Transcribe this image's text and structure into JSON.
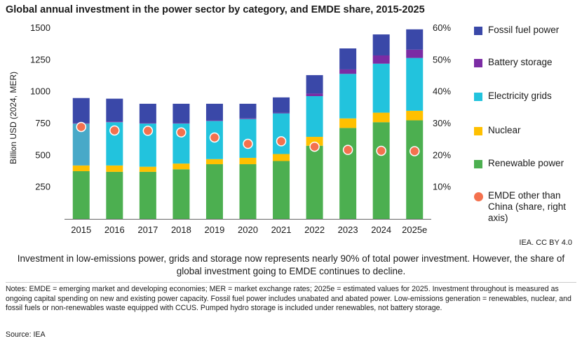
{
  "title": "Global annual investment in the power sector by category, and EMDE share, 2015-2025",
  "credit": "IEA. CC BY 4.0",
  "caption": "Investment in low-emissions power, grids and storage now represents nearly 90% of total power investment. However, the share of global investment going to EMDE continues to decline.",
  "notes": "Notes: EMDE = emerging market and developing economies; MER = market exchange rates; 2025e = estimated values for 2025. Investment throughout is measured as ongoing capital spending on new and existing power capacity. Fossil fuel power includes unabated and abated power. Low-emissions generation = renewables, nuclear, and fossil fuels or non-renewables waste equipped with CCUS. Pumped hydro storage is included under renewables, not battery storage.",
  "source": "Source: IEA",
  "chart_data": {
    "type": "bar",
    "stacked": true,
    "categories": [
      "2015",
      "2016",
      "2017",
      "2018",
      "2019",
      "2020",
      "2021",
      "2022",
      "2023",
      "2024",
      "2025e"
    ],
    "ylabel": "Billion USD (2024, MER)",
    "ylim": [
      0,
      1500
    ],
    "yticks": [
      250,
      500,
      750,
      1000,
      1250,
      1500
    ],
    "y2lim": [
      0,
      0.6
    ],
    "y2ticks": [
      "10%",
      "20%",
      "30%",
      "40%",
      "50%",
      "60%"
    ],
    "grid": false,
    "legend_position": "right",
    "series": [
      {
        "name": "Renewable power",
        "color": "#4caf50",
        "values": [
          375,
          370,
          370,
          390,
          430,
          430,
          455,
          575,
          715,
          760,
          775
        ]
      },
      {
        "name": "Nuclear",
        "color": "#ffc000",
        "values": [
          45,
          50,
          40,
          45,
          40,
          50,
          55,
          70,
          75,
          75,
          75
        ]
      },
      {
        "name": "Electricity grids",
        "color": "#22c3dd",
        "values": [
          330,
          340,
          340,
          315,
          300,
          305,
          320,
          320,
          350,
          385,
          415
        ]
      },
      {
        "name": "Battery storage",
        "color": "#7b2ca4",
        "values": [
          5,
          5,
          5,
          5,
          5,
          5,
          5,
          20,
          35,
          65,
          65
        ]
      },
      {
        "name": "Fossil fuel power",
        "color": "#3a48a8",
        "values": [
          195,
          180,
          150,
          150,
          130,
          115,
          120,
          145,
          165,
          165,
          160
        ]
      }
    ],
    "line_series": {
      "name": "EMDE other than China (share, right axis)",
      "color": "#f4714e",
      "axis": "right",
      "values": [
        0.289,
        0.278,
        0.277,
        0.272,
        0.256,
        0.236,
        0.244,
        0.227,
        0.217,
        0.214,
        0.213
      ]
    }
  }
}
